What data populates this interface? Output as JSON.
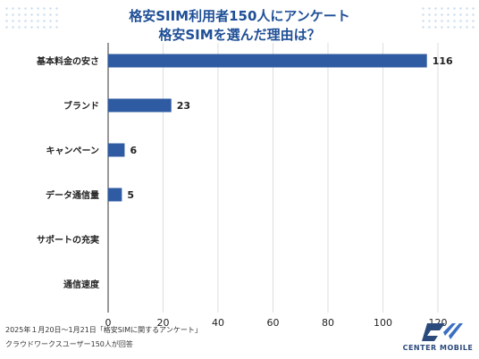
{
  "header": {
    "title_line1": "格安SIIM利用者150人にアンケート",
    "title_line2": "格安SIMを選んだ理由は？"
  },
  "chart_data": {
    "type": "bar",
    "orientation": "horizontal",
    "categories": [
      "基本料金の安さ",
      "ブランド",
      "キャンペーン",
      "データ通信量",
      "サポートの充実",
      "通信速度"
    ],
    "values": [
      116,
      23,
      6,
      5,
      0,
      0
    ],
    "data_labels": [
      "116",
      "23",
      "6",
      "5",
      "",
      ""
    ],
    "xlim": [
      0,
      120
    ],
    "xticks": [
      0,
      20,
      40,
      60,
      80,
      100,
      120
    ],
    "grid": true,
    "bar_color": "#2f5ba3"
  },
  "footer": {
    "line1": "2025年１月20日～1月21日「格安SIMに関するアンケート」",
    "line2": "クラウドワークスユーザー150人が回答"
  },
  "logo": {
    "text": "CENTER MOBILE"
  }
}
